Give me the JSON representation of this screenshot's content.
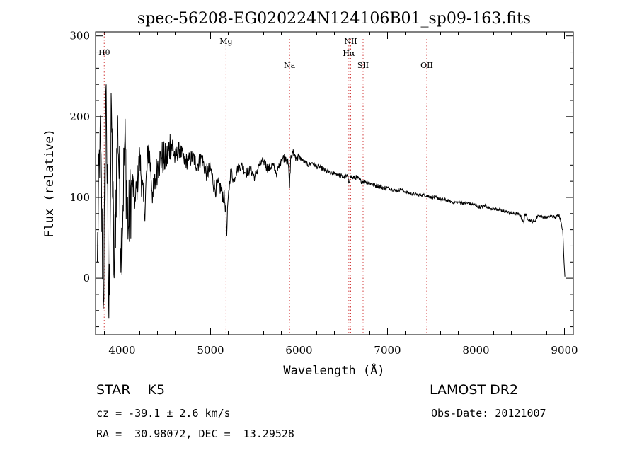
{
  "chart_data": {
    "type": "line",
    "title": "spec-56208-EG020224N124106B01_sp09-163.fits",
    "xlabel": "Wavelength (Å)",
    "ylabel": "Flux (relative)",
    "xlim": [
      3700,
      9100
    ],
    "ylim": [
      -70,
      305
    ],
    "xticks": [
      "4000",
      "5000",
      "6000",
      "7000",
      "8000",
      "9000"
    ],
    "yticks": [
      "0",
      "100",
      "200",
      "300"
    ],
    "grid": false,
    "series": [
      {
        "x": [
          3720,
          3750,
          3790,
          3820,
          3850,
          3880,
          3910,
          3950,
          3990,
          4030,
          4070,
          4110,
          4150,
          4200,
          4250,
          4300,
          4350,
          4400,
          4450,
          4500,
          4550,
          4600,
          4650,
          4700,
          4750,
          4800,
          4850,
          4900,
          4950,
          5000,
          5050,
          5100,
          5150,
          5170,
          5183,
          5200,
          5230,
          5260,
          5300,
          5350,
          5400,
          5450,
          5500,
          5550,
          5600,
          5650,
          5700,
          5750,
          5800,
          5850,
          5880,
          5893,
          5905,
          5930,
          5970,
          6000,
          6050,
          6100,
          6150,
          6200,
          6250,
          6300,
          6350,
          6400,
          6450,
          6500,
          6550,
          6563,
          6580,
          6600,
          6650,
          6700,
          6750,
          6800,
          6850,
          6900,
          6950,
          7000,
          7050,
          7100,
          7150,
          7200,
          7250,
          7300,
          7350,
          7400,
          7450,
          7500,
          7550,
          7600,
          7650,
          7700,
          7750,
          7800,
          7850,
          7900,
          7950,
          8000,
          8050,
          8100,
          8150,
          8200,
          8250,
          8300,
          8350,
          8400,
          8450,
          8500,
          8542,
          8550,
          8600,
          8662,
          8700,
          8750,
          8800,
          8850,
          8900,
          8940,
          8960,
          8980,
          8995,
          9005
        ],
        "y": [
          20,
          180,
          -30,
          240,
          -50,
          210,
          0,
          200,
          30,
          170,
          60,
          120,
          95,
          150,
          80,
          165,
          100,
          140,
          150,
          145,
          170,
          150,
          160,
          145,
          145,
          150,
          140,
          150,
          130,
          135,
          110,
          115,
          100,
          90,
          52,
          100,
          135,
          120,
          135,
          140,
          130,
          135,
          125,
          140,
          145,
          135,
          140,
          130,
          148,
          150,
          140,
          112,
          148,
          155,
          150,
          150,
          145,
          140,
          143,
          138,
          137,
          133,
          130,
          130,
          128,
          125,
          126,
          118,
          127,
          124,
          125,
          120,
          120,
          118,
          115,
          114,
          112,
          112,
          110,
          108,
          110,
          107,
          105,
          104,
          103,
          103,
          102,
          100,
          100,
          98,
          97,
          95,
          94,
          94,
          93,
          93,
          92,
          90,
          88,
          90,
          87,
          86,
          85,
          83,
          82,
          80,
          80,
          78,
          68,
          80,
          72,
          70,
          78,
          76,
          75,
          77,
          75,
          79,
          70,
          60,
          20,
          2
        ]
      }
    ],
    "annotations": [
      {
        "label": "Hθ",
        "x": 3798,
        "row": "top"
      },
      {
        "label": "Mg",
        "x": 5175,
        "row": "top"
      },
      {
        "label": "Na",
        "x": 5893,
        "row": "mid"
      },
      {
        "label": "NII",
        "x": 6584,
        "row": "top"
      },
      {
        "label": "Hα",
        "x": 6563,
        "row": "second"
      },
      {
        "label": "SII",
        "x": 6724,
        "row": "mid"
      },
      {
        "label": "OII",
        "x": 7444,
        "row": "mid"
      }
    ]
  },
  "info": {
    "class": "STAR    K5",
    "survey": "LAMOST DR2",
    "cz": "cz = -39.1 ± 2.6 km/s",
    "obsdate": "Obs-Date: 20121007",
    "radec": "RA =  30.98072, DEC =  13.29528"
  }
}
